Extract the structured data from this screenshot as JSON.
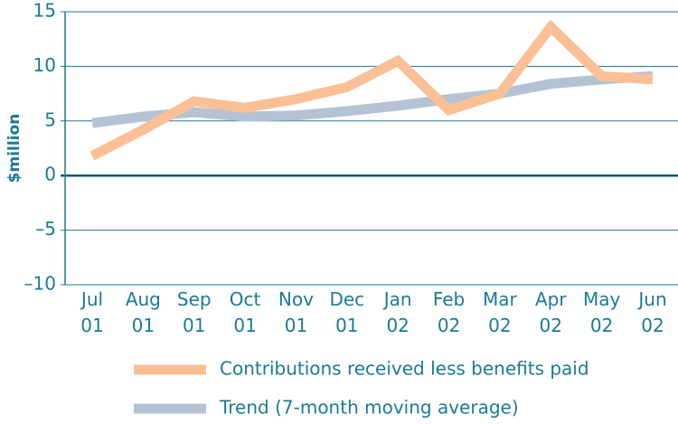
{
  "chart_data": {
    "type": "line",
    "ylabel": "$million",
    "categories": [
      "Jul 01",
      "Aug 01",
      "Sep 01",
      "Oct 01",
      "Nov 01",
      "Dec 01",
      "Jan 02",
      "Feb 02",
      "Mar 02",
      "Apr 02",
      "May 02",
      "Jun 02"
    ],
    "series": [
      {
        "name": "Contributions received less benefits paid",
        "color": "#fbbf95",
        "values": [
          1.8,
          4.2,
          6.8,
          6.2,
          7.0,
          8.1,
          10.5,
          6.0,
          7.5,
          13.6,
          9.1,
          8.8
        ]
      },
      {
        "name": "Trend (7-month moving average)",
        "color": "#b3c3d3",
        "values": [
          4.8,
          5.4,
          5.8,
          5.4,
          5.5,
          5.9,
          6.4,
          7.0,
          7.5,
          8.4,
          8.8,
          9.1
        ]
      }
    ],
    "ylim": [
      -10,
      15
    ],
    "yticks": [
      {
        "value": -10,
        "label": "–10"
      },
      {
        "value": -5,
        "label": "–5"
      },
      0,
      5,
      10,
      15
    ],
    "grid": true
  }
}
